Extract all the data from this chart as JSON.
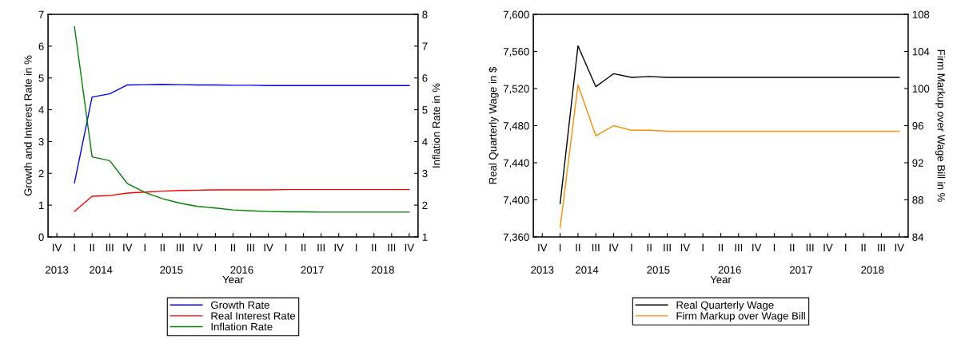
{
  "chart_data": [
    {
      "type": "line",
      "xlabel": "Year",
      "ylabel": "Growth and Interest Rate in %",
      "y2label": "Inflation Rate in %",
      "categories": [
        "IV",
        "I",
        "II",
        "III",
        "IV",
        "I",
        "II",
        "III",
        "IV",
        "I",
        "II",
        "III",
        "IV",
        "I",
        "II",
        "III",
        "IV",
        "I",
        "II",
        "III",
        "IV"
      ],
      "annotations": [
        "2013",
        "2014",
        "2015",
        "2016",
        "2017",
        "2018"
      ],
      "ylim": [
        0,
        7
      ],
      "yticks": [
        0,
        1,
        2,
        3,
        4,
        5,
        6,
        7
      ],
      "y2lim": [
        1,
        8
      ],
      "y2ticks": [
        1,
        2,
        3,
        4,
        5,
        6,
        7,
        8
      ],
      "grid": false,
      "legend": "bottom",
      "series": [
        {
          "name": "Growth Rate",
          "color": "#0000ff",
          "axis": "y",
          "values": [
            null,
            1.7,
            4.4,
            4.5,
            4.78,
            4.79,
            4.8,
            4.79,
            4.78,
            4.78,
            4.77,
            4.77,
            4.76,
            4.76,
            4.76,
            4.76,
            4.76,
            4.76,
            4.76,
            4.76,
            4.76
          ]
        },
        {
          "name": "Real Interest Rate",
          "color": "#ff0000",
          "axis": "y",
          "values": [
            null,
            0.8,
            1.28,
            1.3,
            1.38,
            1.41,
            1.44,
            1.46,
            1.47,
            1.48,
            1.48,
            1.48,
            1.48,
            1.49,
            1.49,
            1.49,
            1.49,
            1.49,
            1.49,
            1.49,
            1.49
          ]
        },
        {
          "name": "Inflation Rate",
          "color": "#008000",
          "axis": "y2",
          "values": [
            null,
            7.61,
            3.52,
            3.4,
            2.68,
            2.4,
            2.2,
            2.06,
            1.96,
            1.91,
            1.85,
            1.82,
            1.8,
            1.79,
            1.79,
            1.78,
            1.78,
            1.78,
            1.78,
            1.78,
            1.78
          ]
        }
      ]
    },
    {
      "type": "line",
      "xlabel": "Year",
      "ylabel": "Real Quarterly Wage in $",
      "y2label": "Firm Markup over Wage Bill in %",
      "categories": [
        "IV",
        "I",
        "II",
        "III",
        "IV",
        "I",
        "II",
        "III",
        "IV",
        "I",
        "II",
        "III",
        "IV",
        "I",
        "II",
        "III",
        "IV",
        "I",
        "II",
        "III",
        "IV"
      ],
      "annotations": [
        "2013",
        "2014",
        "2015",
        "2016",
        "2017",
        "2018"
      ],
      "ylim": [
        7360,
        7600
      ],
      "yticks": [
        {
          "value": 7360,
          "label": "7,360"
        },
        {
          "value": 7400,
          "label": "7,400"
        },
        {
          "value": 7440,
          "label": "7,440"
        },
        {
          "value": 7480,
          "label": "7,480"
        },
        {
          "value": 7520,
          "label": "7,520"
        },
        {
          "value": 7560,
          "label": "7,560"
        },
        {
          "value": 7600,
          "label": "7,600"
        }
      ],
      "y2lim": [
        84,
        108
      ],
      "y2ticks": [
        84,
        88,
        92,
        96,
        100,
        104,
        108
      ],
      "grid": false,
      "legend": "bottom",
      "series": [
        {
          "name": "Real Quarterly Wage",
          "color": "#000000",
          "axis": "y",
          "values": [
            null,
            7396,
            7566,
            7522,
            7536,
            7532,
            7533,
            7532,
            7532,
            7532,
            7532,
            7532,
            7532,
            7532,
            7532,
            7532,
            7532,
            7532,
            7532,
            7532,
            7532
          ]
        },
        {
          "name": "Firm Markup over Wage Bill",
          "color": "#ff8c00",
          "axis": "y2",
          "values": [
            null,
            85.0,
            100.4,
            94.9,
            96.0,
            95.5,
            95.5,
            95.4,
            95.4,
            95.4,
            95.4,
            95.4,
            95.4,
            95.4,
            95.4,
            95.4,
            95.4,
            95.4,
            95.4,
            95.4,
            95.4
          ]
        }
      ]
    }
  ]
}
